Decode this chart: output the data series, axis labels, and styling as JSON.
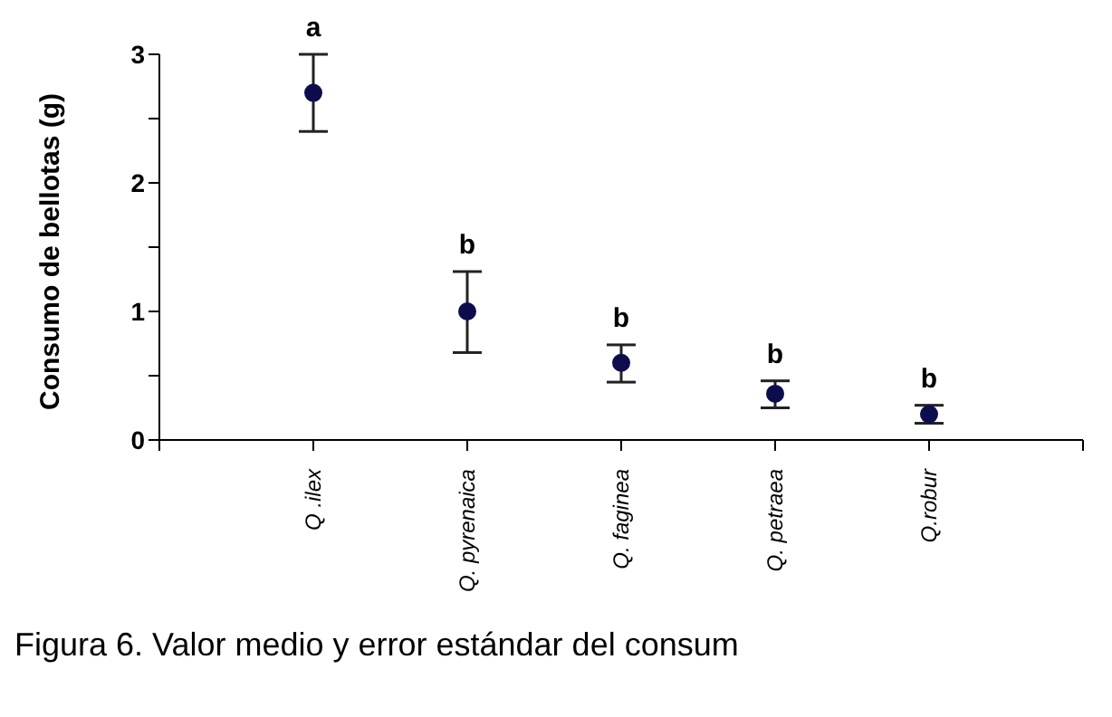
{
  "chart_data": {
    "type": "scatter",
    "ylabel": "Consumo de bellotas (g)",
    "categories": [
      null,
      "Q .ilex",
      "Q. pyrenaica",
      "Q. faginea",
      "Q. petraea",
      "Q.robur",
      null
    ],
    "values": [
      null,
      2.7,
      1.0,
      0.6,
      0.36,
      0.2,
      null
    ],
    "errors": [
      null,
      [
        2.4,
        3.0
      ],
      [
        0.68,
        1.31
      ],
      [
        0.45,
        0.74
      ],
      [
        0.25,
        0.46
      ],
      [
        0.13,
        0.27
      ],
      null
    ],
    "color": "#0d0d4d",
    "marker": "circle",
    "ylim": [
      0,
      3
    ],
    "yticks": [
      0,
      {
        "value": 0.5,
        "label": null
      },
      1,
      {
        "value": 1.5,
        "label": null
      },
      2,
      {
        "value": 2.5,
        "label": null
      },
      3
    ],
    "grid": false,
    "annotations": [
      {
        "text": "a",
        "x": "Q .ilex",
        "y": 3.0
      },
      {
        "text": "b",
        "x": "Q. pyrenaica",
        "y": 1.31
      },
      {
        "text": "b",
        "x": "Q. faginea",
        "y": 0.74
      },
      {
        "text": "b",
        "x": "Q. petraea",
        "y": 0.46
      },
      {
        "text": "b",
        "x": "Q.robur",
        "y": 0.27
      },
      "Figura 6. Valor medio y error estándar del consum"
    ]
  }
}
